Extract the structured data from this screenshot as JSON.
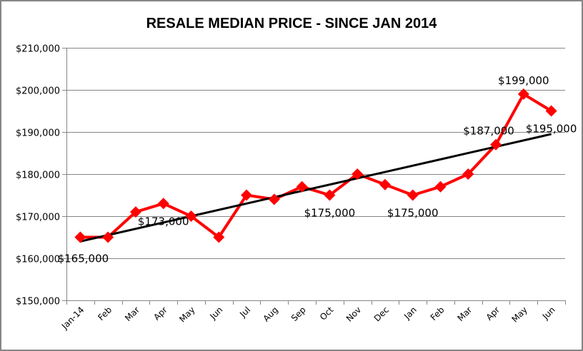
{
  "chart_data": {
    "type": "line",
    "title": "RESALE MEDIAN PRICE - SINCE JAN 2014",
    "xlabel": "",
    "ylabel": "",
    "categories": [
      "Jan-14",
      "Feb",
      "Mar",
      "Apr",
      "May",
      "Jun",
      "Jul",
      "Aug",
      "Sep",
      "Oct",
      "Nov",
      "Dec",
      "Jan",
      "Feb",
      "Mar",
      "Apr",
      "May",
      "Jun"
    ],
    "series": [
      {
        "name": "Resale Median Price",
        "color": "#ff0000",
        "marker": "diamond",
        "values": [
          165000,
          165000,
          171000,
          173000,
          170000,
          165000,
          175000,
          174000,
          177000,
          175000,
          180000,
          177500,
          175000,
          177000,
          180000,
          187000,
          199000,
          195000
        ]
      }
    ],
    "trendline": {
      "type": "linear",
      "color": "#000000",
      "start": 164000,
      "end": 189500
    },
    "ylim": [
      150000,
      210000
    ],
    "yticks": [
      150000,
      160000,
      170000,
      180000,
      190000,
      200000,
      210000
    ],
    "ytick_labels": [
      "$150,000",
      "$160,000",
      "$170,000",
      "$180,000",
      "$190,000",
      "$200,000",
      "$210,000"
    ],
    "grid": true,
    "legend": "none",
    "data_labels": [
      {
        "index": 0,
        "text": "$165,000",
        "position": "below"
      },
      {
        "index": 3,
        "text": "$173,000",
        "position": "below"
      },
      {
        "index": 9,
        "text": "$175,000",
        "position": "below"
      },
      {
        "index": 12,
        "text": "$175,000",
        "position": "below"
      },
      {
        "index": 15,
        "text": "$187,000",
        "position": "above-left"
      },
      {
        "index": 16,
        "text": "$199,000",
        "position": "above"
      },
      {
        "index": 17,
        "text": "$195,000",
        "position": "below"
      }
    ]
  }
}
